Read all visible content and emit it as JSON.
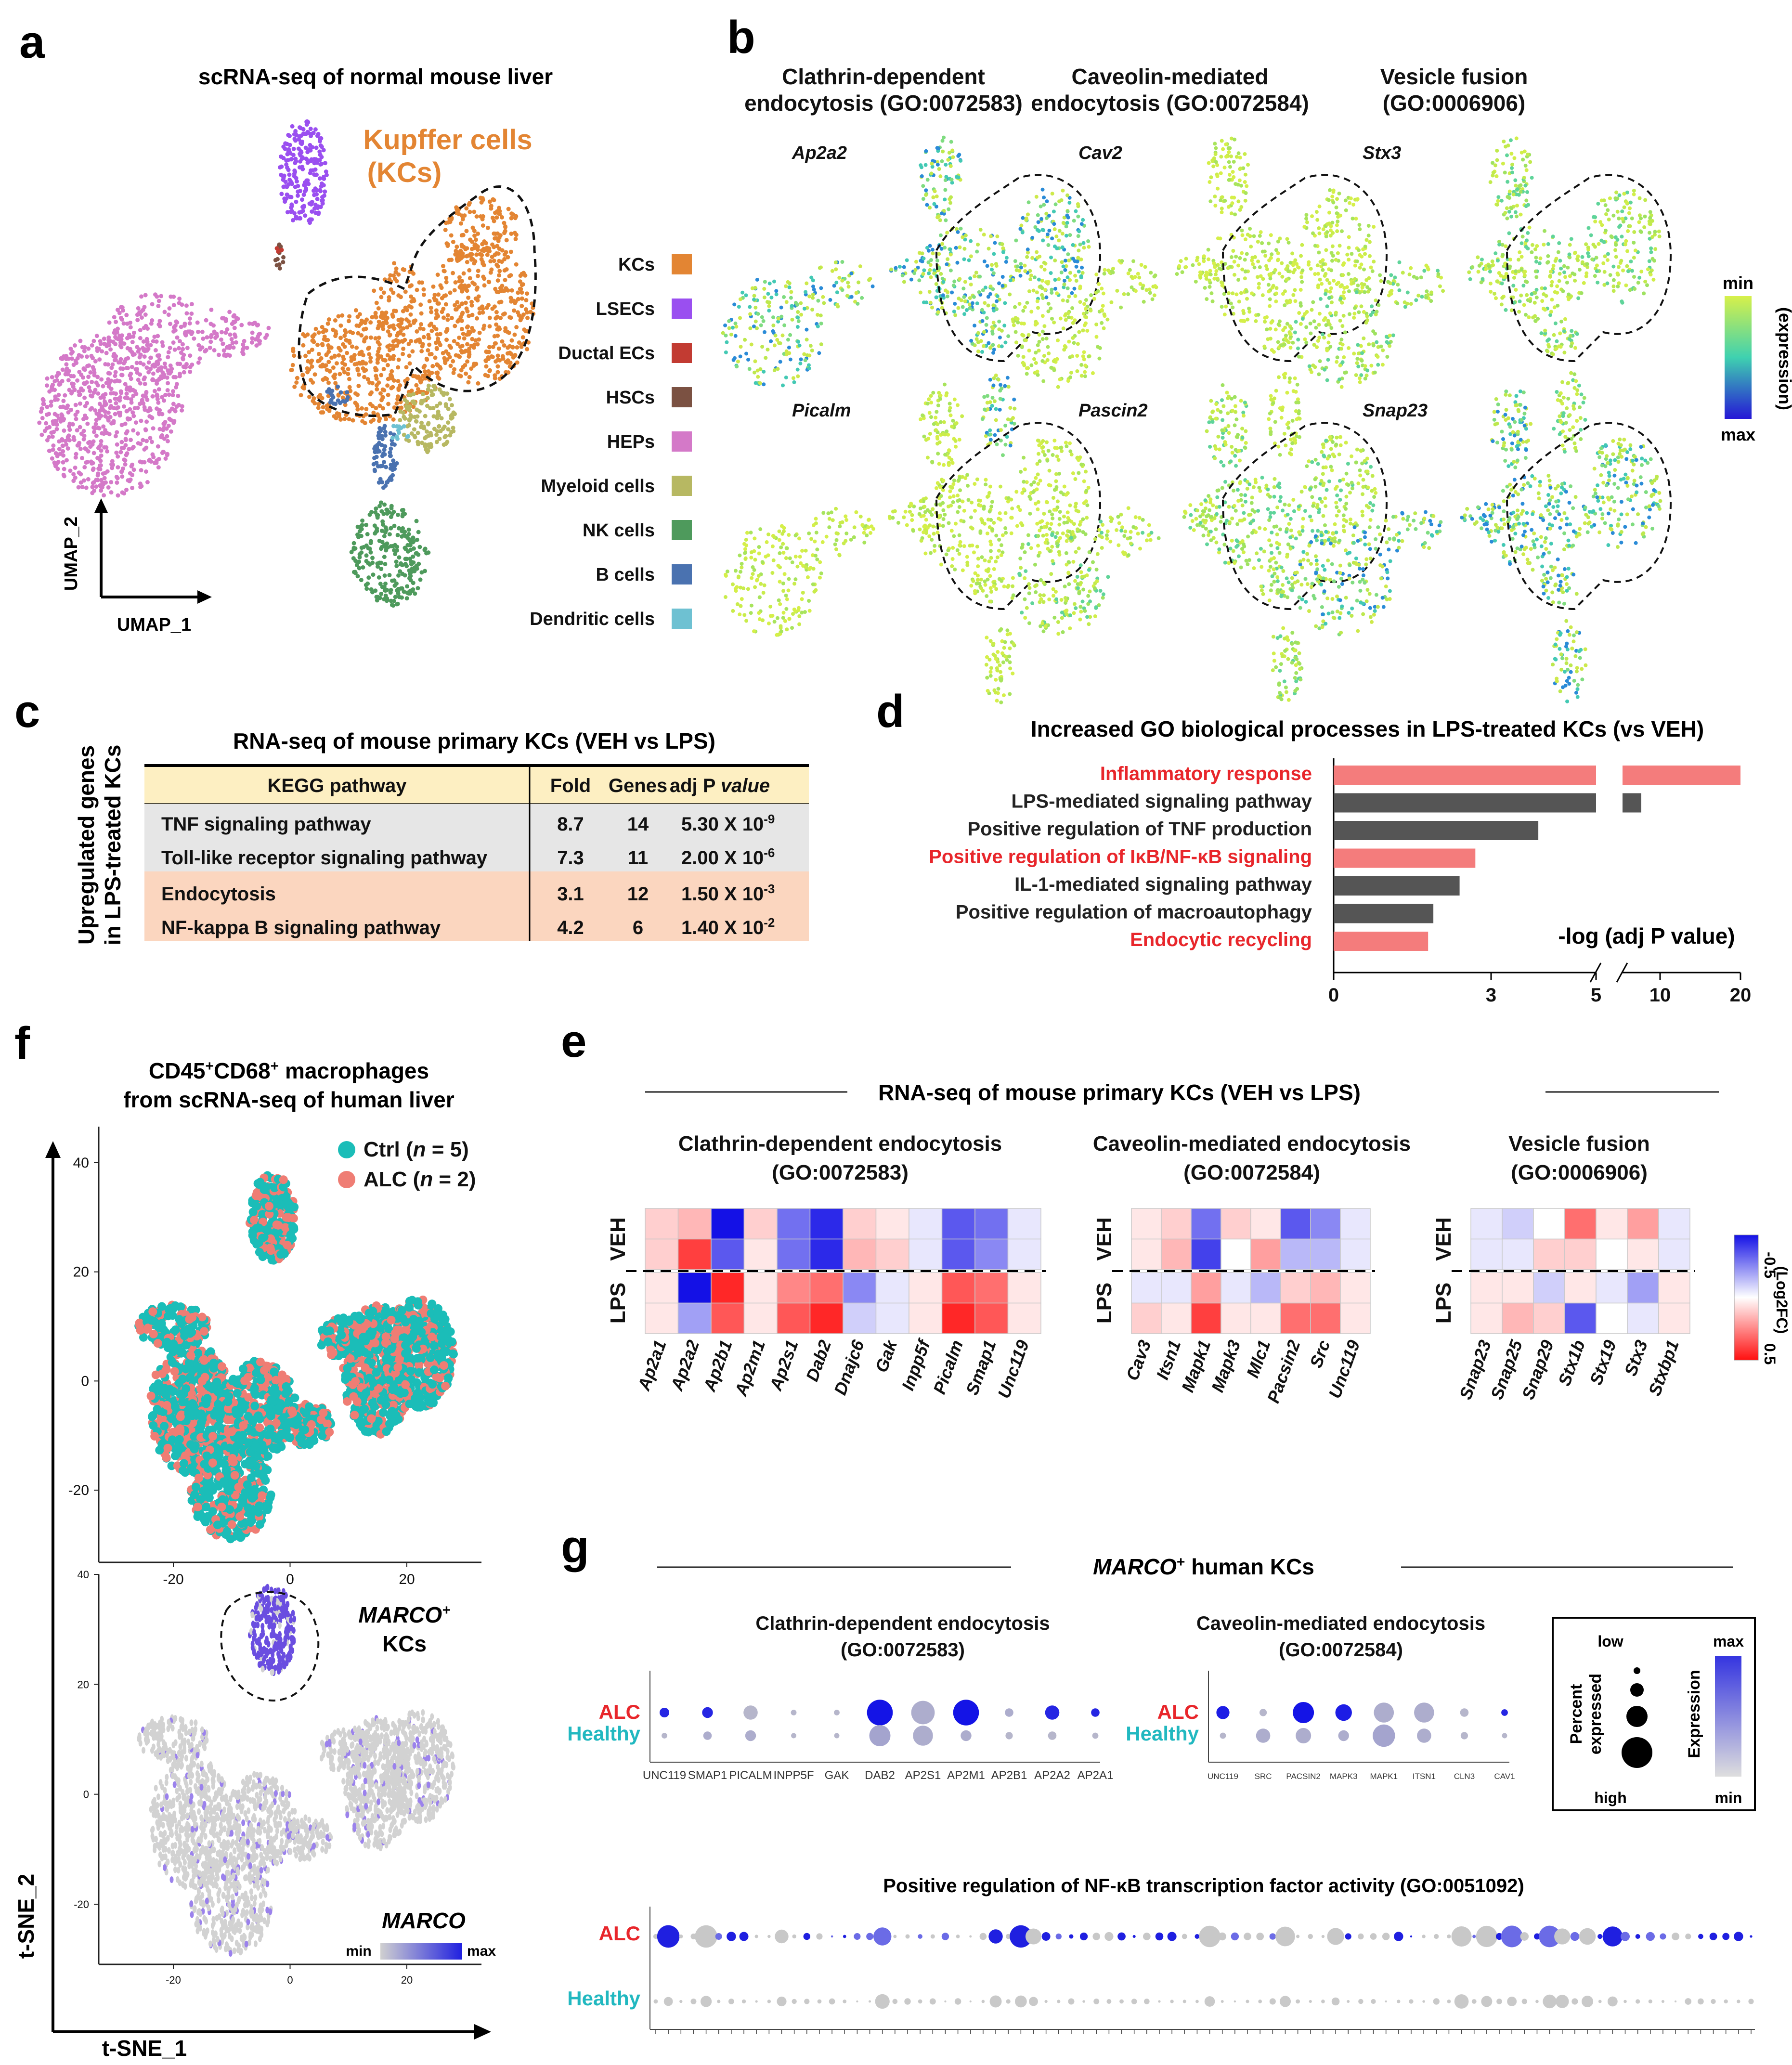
{
  "panels": {
    "a": {
      "letter": "a",
      "title": "scRNA-seq of normal mouse liver",
      "kc_label_line1": "Kupffer cells",
      "kc_label_line2": "(KCs)",
      "axis_x": "UMAP_1",
      "axis_y": "UMAP_2",
      "legend": [
        {
          "label": "KCs",
          "color": "#e38533"
        },
        {
          "label": "LSECs",
          "color": "#9a4ff0"
        },
        {
          "label": "Ductal ECs",
          "color": "#c23b32"
        },
        {
          "label": "HSCs",
          "color": "#7b5142"
        },
        {
          "label": "HEPs",
          "color": "#d479c8"
        },
        {
          "label": "Myeloid cells",
          "color": "#b7b862"
        },
        {
          "label": "NK cells",
          "color": "#4e9a5c"
        },
        {
          "label": "B cells",
          "color": "#4a72b0"
        },
        {
          "label": "Dendritic cells",
          "color": "#6ec1d2"
        }
      ]
    },
    "b": {
      "letter": "b",
      "columns": [
        {
          "title1": "Clathrin-dependent",
          "title2": "endocytosis (GO:0072583)",
          "genes": [
            "Ap2a2",
            "Picalm"
          ]
        },
        {
          "title1": "Caveolin-mediated",
          "title2": "endocytosis (GO:0072584)",
          "genes": [
            "Cav2",
            "Pascin2"
          ]
        },
        {
          "title1": "Vesicle fusion",
          "title2": "(GO:0006906)",
          "genes": [
            "Stx3",
            "Snap23"
          ]
        }
      ],
      "colorbar_min": "min",
      "colorbar_max": "max",
      "colorbar_label": "(expression)"
    },
    "c": {
      "letter": "c",
      "title": "RNA-seq of mouse primary KCs (VEH vs LPS)",
      "side_label1": "Upregulated genes",
      "side_label2": "in LPS-treated KCs",
      "headers": [
        "KEGG pathway",
        "Fold",
        "Genes",
        "adj P value"
      ],
      "rows": [
        {
          "pathway": "TNF signaling pathway",
          "fold": "8.7",
          "genes": "14",
          "p_base": "5.30 X 10",
          "p_exp": "-9"
        },
        {
          "pathway": "Toll-like receptor signaling pathway",
          "fold": "7.3",
          "genes": "11",
          "p_base": "2.00 X 10",
          "p_exp": "-6"
        },
        {
          "pathway": "Endocytosis",
          "fold": "3.1",
          "genes": "12",
          "p_base": "1.50 X 10",
          "p_exp": "-3"
        },
        {
          "pathway": "NF-kappa B signaling pathway",
          "fold": "4.2",
          "genes": "6",
          "p_base": "1.40 X 10",
          "p_exp": "-2"
        }
      ]
    },
    "d": {
      "letter": "d",
      "axis_label": "-log (adj P value)",
      "chart_ref": "chart_data"
    },
    "e": {
      "letter": "e",
      "header": "RNA-seq of mouse primary KCs (VEH vs LPS)",
      "groups": [
        {
          "title1": "Clathrin-dependent endocytosis",
          "title2": "(GO:0072583)",
          "genes": [
            "Ap2a1",
            "Ap2a2",
            "Ap2b1",
            "Ap2m1",
            "Ap2s1",
            "Dab2",
            "Dnajc6",
            "Gak",
            "Inpp5f",
            "Picalm",
            "Smap1",
            "Unc119"
          ],
          "values": [
            [
              0.1,
              0.15,
              -0.5,
              0.1,
              -0.3,
              -0.45,
              0.1,
              0.05,
              -0.05,
              -0.35,
              -0.3,
              -0.05
            ],
            [
              0.1,
              0.4,
              -0.35,
              0.05,
              -0.3,
              -0.45,
              0.15,
              0.1,
              -0.05,
              -0.35,
              -0.25,
              -0.05
            ],
            [
              0.05,
              -0.5,
              0.45,
              0.05,
              0.25,
              0.3,
              -0.25,
              -0.05,
              0.05,
              0.35,
              0.3,
              0.05
            ],
            [
              0.05,
              -0.2,
              0.35,
              0.05,
              0.35,
              0.45,
              -0.1,
              -0.05,
              0.05,
              0.45,
              0.35,
              0.05
            ]
          ]
        },
        {
          "title1": "Caveolin-mediated endocytosis",
          "title2": "(GO:0072584)",
          "genes": [
            "Cav3",
            "Itsn1",
            "Mapk1",
            "Mapk3",
            "Mlc1",
            "Pacsin2",
            "Src",
            "Unc119"
          ],
          "values": [
            [
              0.05,
              0.1,
              -0.3,
              0.1,
              0.05,
              -0.35,
              -0.25,
              -0.05
            ],
            [
              0.05,
              0.15,
              -0.4,
              0.0,
              0.2,
              -0.15,
              -0.15,
              -0.05
            ],
            [
              -0.05,
              -0.05,
              0.2,
              -0.05,
              -0.15,
              0.1,
              0.15,
              0.05
            ],
            [
              0.1,
              0.05,
              0.4,
              0.05,
              0.05,
              0.3,
              0.3,
              0.05
            ]
          ]
        },
        {
          "title1": "Vesicle fusion",
          "title2": "(GO:0006906)",
          "genes": [
            "Snap23",
            "Snap25",
            "Snap29",
            "Stx1b",
            "Stx19",
            "Stx3",
            "Stxbp1"
          ],
          "values": [
            [
              -0.05,
              -0.1,
              0.0,
              0.3,
              0.05,
              0.2,
              -0.05
            ],
            [
              -0.05,
              -0.05,
              0.1,
              0.1,
              0.0,
              0.05,
              -0.05
            ],
            [
              0.05,
              0.05,
              -0.1,
              0.05,
              -0.05,
              -0.2,
              0.05
            ],
            [
              0.05,
              0.15,
              0.1,
              -0.35,
              0.0,
              -0.05,
              0.05
            ]
          ]
        }
      ],
      "row_labels": [
        "VEH",
        "LPS"
      ],
      "colorbar_top": "-0.5",
      "colorbar_bottom": "0.5",
      "colorbar_label": "(Log2FC)"
    },
    "f": {
      "letter": "f",
      "title_line1_main": "CD45",
      "title_line1_sup1": "+",
      "title_line1_mid": "CD68",
      "title_line1_sup2": "+",
      "title_line1_end": " macrophages",
      "title_line2": "from scRNA-seq of human liver",
      "legend": [
        {
          "label": "Ctrl (",
          "n": "n",
          "rest": " = 5)",
          "color": "#1bbdb8"
        },
        {
          "label": "ALC (",
          "n": "n",
          "rest": " = 2)",
          "color": "#ef7d74"
        }
      ],
      "top_yticks": [
        "40",
        "20",
        "0",
        "-20"
      ],
      "top_xticks": [
        "-20",
        "0",
        "20"
      ],
      "bottom_yticks": [
        "40",
        "20",
        "0",
        "-20"
      ],
      "bottom_xticks": [
        "-20",
        "0",
        "20"
      ],
      "marco_label": "MARCO",
      "marco_sup": "+",
      "kcs_label": "KCs",
      "gene_label": "MARCO",
      "scale_min": "min",
      "scale_max": "max",
      "axis_x": "t-SNE_1",
      "axis_y": "t-SNE_2"
    },
    "g": {
      "letter": "g",
      "header_gene": "MARCO",
      "header_sup": "+",
      "header_rest": " human KCs",
      "row_labels": [
        "ALC",
        "Healthy"
      ],
      "clathrin": {
        "title1": "Clathrin-dependent endocytosis",
        "title2": "(GO:0072583)",
        "genes": [
          "UNC119",
          "SMAP1",
          "PICALM",
          "INPP5F",
          "GAK",
          "DAB2",
          "AP2S1",
          "AP2M1",
          "AP2B1",
          "AP2A2",
          "AP2A1"
        ],
        "alc_size": [
          0.25,
          0.3,
          0.45,
          0.08,
          0.08,
          0.95,
          0.85,
          0.95,
          0.2,
          0.45,
          0.2
        ],
        "alc_expr": [
          0.9,
          0.9,
          0.1,
          0.1,
          0.1,
          1.0,
          0.15,
          1.0,
          0.15,
          0.9,
          0.9
        ],
        "healthy_size": [
          0.08,
          0.2,
          0.3,
          0.06,
          0.06,
          0.75,
          0.7,
          0.3,
          0.15,
          0.2,
          0.1
        ],
        "healthy_expr": [
          0.1,
          0.15,
          0.15,
          0.1,
          0.1,
          0.2,
          0.15,
          0.15,
          0.1,
          0.1,
          0.1
        ]
      },
      "caveolin": {
        "title1": "Caveolin-mediated endocytosis",
        "title2": "(GO:0072584)",
        "genes": [
          "UNC119",
          "SRC",
          "PACSIN2",
          "MAPK3",
          "MAPK1",
          "ITSN1",
          "CLN3",
          "CAV1"
        ],
        "alc_size": [
          0.4,
          0.15,
          0.75,
          0.55,
          0.7,
          0.7,
          0.2,
          0.12
        ],
        "alc_expr": [
          0.95,
          0.1,
          1.0,
          0.95,
          0.15,
          0.15,
          0.1,
          0.9
        ],
        "healthy_size": [
          0.1,
          0.45,
          0.5,
          0.3,
          0.8,
          0.45,
          0.15,
          0.06
        ],
        "healthy_expr": [
          0.1,
          0.15,
          0.15,
          0.15,
          0.2,
          0.15,
          0.1,
          0.1
        ]
      },
      "legend_pct_title1": "Percent",
      "legend_pct_title2": "expressed",
      "legend_low": "low",
      "legend_high": "high",
      "legend_expr_title": "Expression",
      "legend_max": "max",
      "legend_min": "min",
      "nfkb_title": "Positive regulation of NF-κB transcription factor activity (GO:0051092)"
    }
  },
  "chart_data": {
    "type": "bar",
    "title": "Increased GO biological processes in LPS-treated KCs (vs VEH)",
    "xlabel": "-log (adj P value)",
    "ylabel": "",
    "orientation": "horizontal",
    "broken_axis": true,
    "xticks": [
      "0",
      "3",
      "5",
      "10",
      "20"
    ],
    "categories": [
      "Inflammatory response",
      "LPS-mediated signaling pathway",
      "Positive regulation of TNF production",
      "Positive regulation of IκB/NF-κB signaling",
      "IL-1-mediated signaling pathway",
      "Positive regulation of macroautophagy",
      "Endocytic recycling"
    ],
    "values": [
      20,
      7.5,
      3.9,
      2.7,
      2.4,
      1.9,
      1.8
    ],
    "highlighted": [
      true,
      false,
      false,
      true,
      false,
      false,
      true
    ],
    "colors": {
      "highlight": "#f47c7c",
      "normal": "#555555",
      "highlight_text": "#e8262b"
    }
  }
}
